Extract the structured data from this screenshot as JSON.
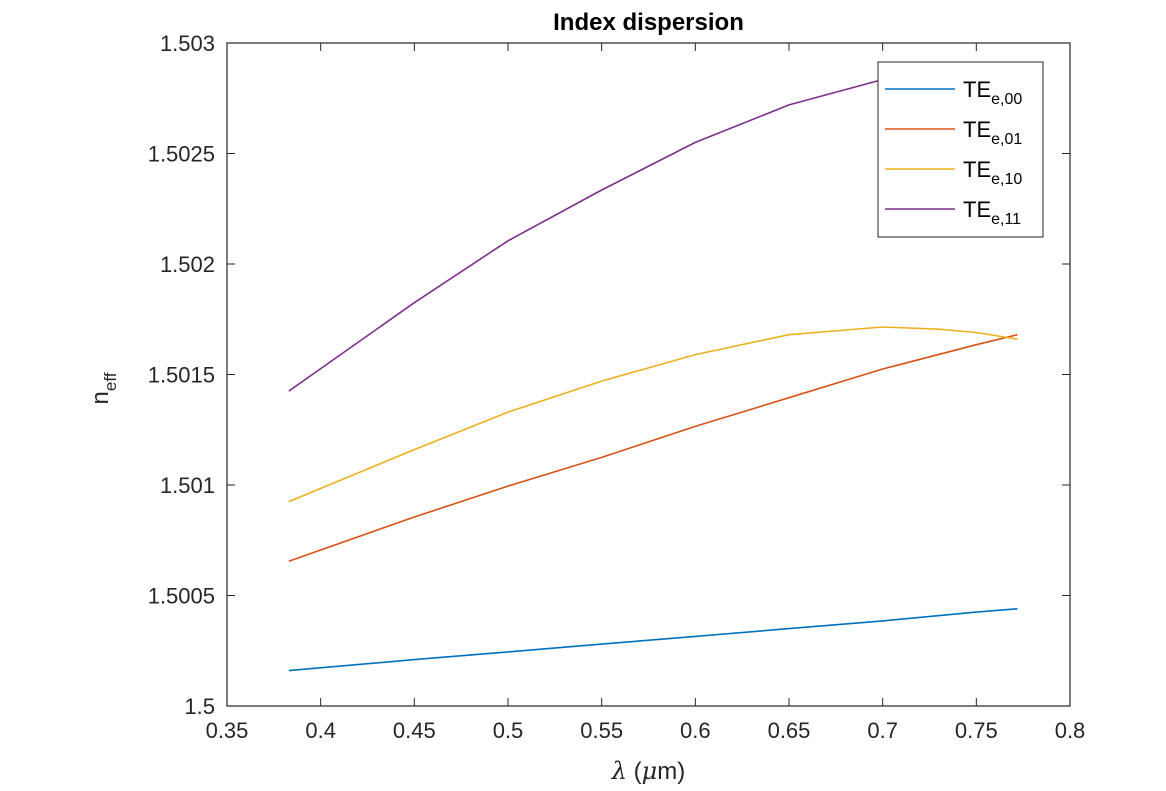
{
  "chart_data": {
    "type": "line",
    "title": "Index dispersion",
    "xlabel_symbol": "λ",
    "xlabel_unit_prefix": "μ",
    "xlabel_unit": "m",
    "ylabel_base": "n",
    "ylabel_sub": "eff",
    "xlim": [
      0.35,
      0.8
    ],
    "ylim": [
      1.5,
      1.503
    ],
    "xticks": [
      "0.35",
      "0.4",
      "0.45",
      "0.5",
      "0.55",
      "0.6",
      "0.65",
      "0.7",
      "0.75",
      "0.8"
    ],
    "yticks": [
      "1.5",
      "1.5005",
      "1.501",
      "1.5015",
      "1.502",
      "1.5025",
      "1.503"
    ],
    "grid": false,
    "legend_position": "top-right",
    "series": [
      {
        "name_base": "TE",
        "name_sub": "e,00",
        "color": "#0072BD",
        "x": [
          0.383,
          0.45,
          0.5,
          0.55,
          0.6,
          0.65,
          0.7,
          0.75,
          0.772
        ],
        "y": [
          1.50016,
          1.50021,
          1.500245,
          1.50028,
          1.500315,
          1.50035,
          1.500385,
          1.500425,
          1.50044
        ]
      },
      {
        "name_base": "TE",
        "name_sub": "e,01",
        "color": "#D95319",
        "x": [
          0.383,
          0.45,
          0.5,
          0.55,
          0.6,
          0.65,
          0.7,
          0.75,
          0.772
        ],
        "y": [
          1.500655,
          1.500855,
          1.500995,
          1.501125,
          1.501265,
          1.501395,
          1.501525,
          1.501635,
          1.50168
        ]
      },
      {
        "name_base": "TE",
        "name_sub": "e,10",
        "color": "#EDB120",
        "x": [
          0.383,
          0.45,
          0.5,
          0.55,
          0.6,
          0.65,
          0.7,
          0.73,
          0.75,
          0.772
        ],
        "y": [
          1.500925,
          1.50116,
          1.50133,
          1.50147,
          1.50159,
          1.50168,
          1.501715,
          1.501705,
          1.50169,
          1.50166
        ]
      },
      {
        "name_base": "TE",
        "name_sub": "e,11",
        "color": "#7E2F8E",
        "x": [
          0.383,
          0.45,
          0.5,
          0.55,
          0.6,
          0.65,
          0.7,
          0.73,
          0.75,
          0.772
        ],
        "y": [
          1.501425,
          1.501825,
          1.502105,
          1.502335,
          1.50255,
          1.50272,
          1.502835,
          1.50288,
          1.502895,
          1.50291
        ]
      }
    ]
  }
}
